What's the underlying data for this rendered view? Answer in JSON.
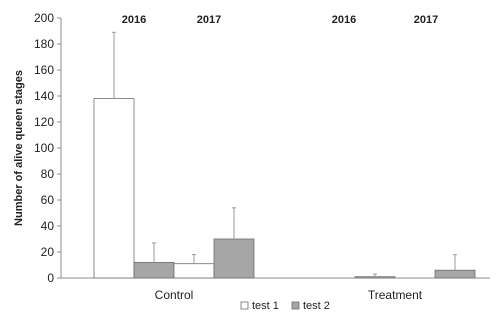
{
  "chart_data": {
    "type": "bar",
    "ylabel": "Number of alive queen stages",
    "ylim": [
      0,
      200
    ],
    "y_ticks": [
      0,
      20,
      40,
      60,
      80,
      100,
      120,
      140,
      160,
      180,
      200
    ],
    "group_labels": [
      "Control",
      "Treatment"
    ],
    "year_labels": [
      "2016",
      "2017",
      "2016",
      "2017"
    ],
    "legend": [
      {
        "label": "test 1",
        "color": "#ffffff"
      },
      {
        "label": "test 2",
        "color": "#a6a6a6"
      }
    ],
    "bars": [
      {
        "group": "Control",
        "year": "2016",
        "series": "test 1",
        "value": 138,
        "error": 51
      },
      {
        "group": "Control",
        "year": "2016",
        "series": "test 2",
        "value": 12,
        "error": 15
      },
      {
        "group": "Control",
        "year": "2017",
        "series": "test 1",
        "value": 11,
        "error": 7
      },
      {
        "group": "Control",
        "year": "2017",
        "series": "test 2",
        "value": 30,
        "error": 24
      },
      {
        "group": "Treatment",
        "year": "2016",
        "series": "test 1",
        "value": 0,
        "error": 0
      },
      {
        "group": "Treatment",
        "year": "2016",
        "series": "test 2",
        "value": 1,
        "error": 2
      },
      {
        "group": "Treatment",
        "year": "2017",
        "series": "test 1",
        "value": 0,
        "error": 0
      },
      {
        "group": "Treatment",
        "year": "2017",
        "series": "test 2",
        "value": 6,
        "error": 12
      }
    ],
    "grid": false,
    "legend_position": "bottom-center"
  }
}
